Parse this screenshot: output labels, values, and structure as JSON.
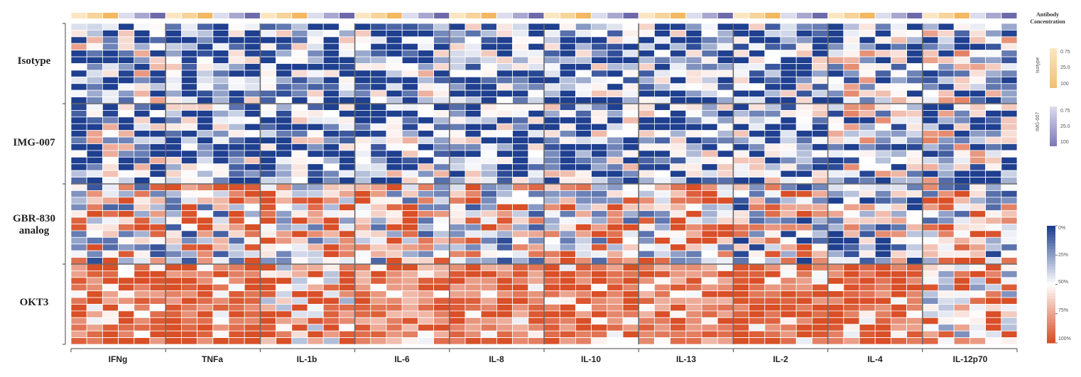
{
  "chart_data": {
    "type": "heatmap",
    "title": "",
    "row_groups": [
      "Isotype",
      "IMG-007",
      "GBR-830 analog",
      "OKT3"
    ],
    "row_group_labels": [
      "Isotype",
      "IMG-007",
      "GBR-830\nanalog",
      "OKT3"
    ],
    "columns": [
      "IFNg",
      "TNFa",
      "IL-1b",
      "IL-6",
      "IL-8",
      "IL-10",
      "IL-13",
      "IL-2",
      "IL-4",
      "IL-12p70"
    ],
    "sub_columns_per_column": 6,
    "rows_per_group": 12,
    "color_scale": {
      "labels": [
        "0%",
        "25%",
        "50%",
        "75%",
        "100%"
      ],
      "low_color": "#1f3f8f",
      "mid_color": "#ffffff",
      "high_color": "#d94f27"
    },
    "group_mean_percent": [
      [
        25,
        12,
        12,
        18,
        14,
        16,
        14,
        15,
        28,
        32
      ],
      [
        22,
        14,
        14,
        18,
        16,
        18,
        16,
        16,
        30,
        34
      ],
      [
        55,
        58,
        68,
        60,
        58,
        64,
        66,
        48,
        40,
        56
      ],
      [
        92,
        96,
        84,
        86,
        90,
        92,
        88,
        95,
        94,
        75
      ]
    ],
    "concentration_legend": {
      "title": "Antibody\nConcentration",
      "scales": [
        {
          "name": "Isotype",
          "labels": [
            "0.75",
            "25.0",
            "100"
          ],
          "color": "#f0c070"
        },
        {
          "name": "IMG-007",
          "labels": [
            "0.75",
            "25.0",
            "100"
          ],
          "color": "#7b78b8"
        }
      ]
    }
  },
  "colors": {
    "concentration_low": "#fbe6c2",
    "concentration_high": "#f3b860",
    "concentration_alt_low": "#dcdcee",
    "concentration_alt_high": "#6e6aaa",
    "grid_line": "#ffffff",
    "axis": "#444444"
  }
}
